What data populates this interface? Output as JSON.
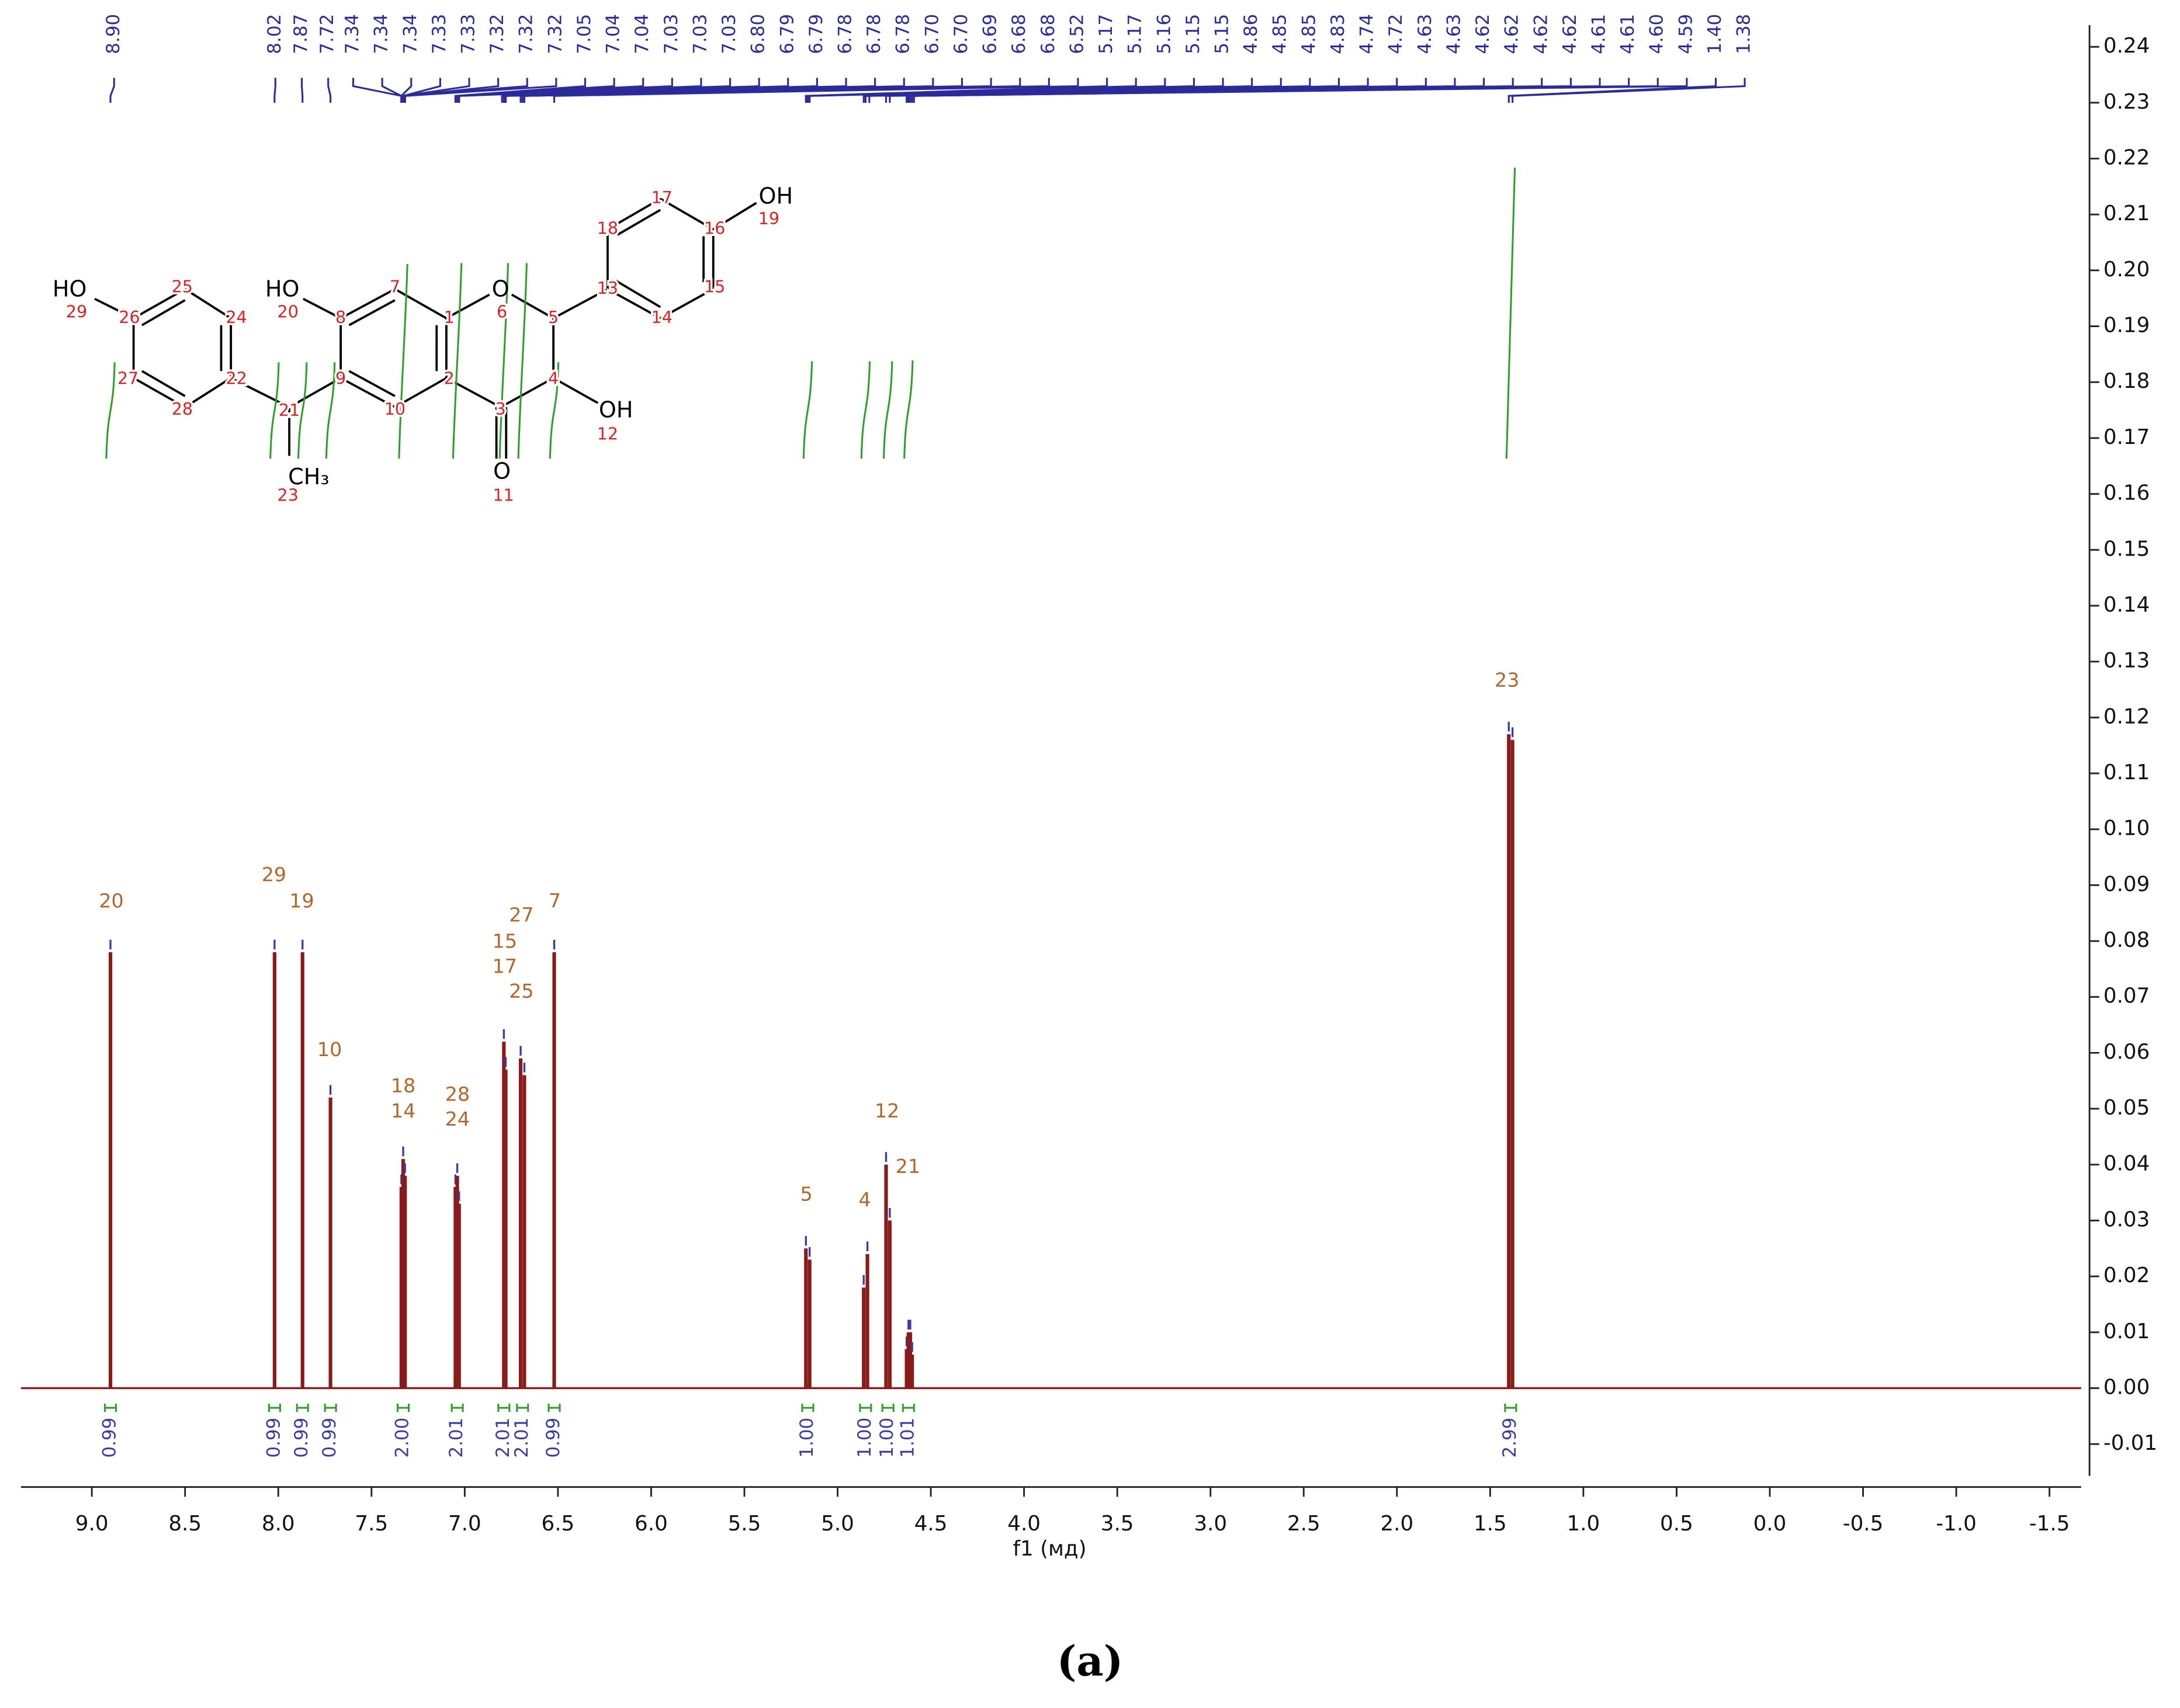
{
  "chart_data": {
    "type": "spectrum",
    "x_label": "f1 (мд)",
    "caption": "(a)",
    "color": "#8b1a1a",
    "pick_color": "#3a3ab0",
    "integral_color": "#2ea02e",
    "x": [
      8.9,
      8.02,
      7.87,
      7.72,
      7.34,
      7.33,
      7.32,
      7.05,
      7.04,
      7.03,
      6.79,
      6.78,
      6.7,
      6.68,
      6.52,
      5.17,
      5.15,
      4.86,
      4.84,
      4.74,
      4.72,
      4.63,
      4.62,
      4.61,
      4.6,
      1.4,
      1.38
    ],
    "values": [
      0.078,
      0.078,
      0.078,
      0.052,
      0.036,
      0.041,
      0.038,
      0.036,
      0.038,
      0.033,
      0.062,
      0.057,
      0.059,
      0.056,
      0.078,
      0.025,
      0.023,
      0.018,
      0.024,
      0.04,
      0.03,
      0.007,
      0.01,
      0.01,
      0.006,
      0.117,
      0.116
    ],
    "xlim": [
      9.38,
      -1.67
    ],
    "ylim": [
      -0.0157,
      0.2439
    ],
    "xticks": [
      {
        "value": 9.0,
        "label": "9.0"
      },
      8.5,
      {
        "value": 8.0,
        "label": "8.0"
      },
      7.5,
      {
        "value": 7.0,
        "label": "7.0"
      },
      6.5,
      {
        "value": 6.0,
        "label": "6.0"
      },
      5.5,
      {
        "value": 5.0,
        "label": "5.0"
      },
      4.5,
      {
        "value": 4.0,
        "label": "4.0"
      },
      3.5,
      {
        "value": 3.0,
        "label": "3.0"
      },
      2.5,
      {
        "value": 2.0,
        "label": "2.0"
      },
      1.5,
      {
        "value": 1.0,
        "label": "1.0"
      },
      0.5,
      {
        "value": 0.0,
        "label": "0.0"
      },
      -0.5,
      {
        "value": -1.0,
        "label": "-1.0"
      },
      -1.5
    ],
    "yticks": [
      -0.01,
      {
        "value": 0.0,
        "label": "0.00"
      },
      0.01,
      0.02,
      0.03,
      0.04,
      0.05,
      0.06,
      0.07,
      0.08,
      0.09,
      {
        "value": 0.1,
        "label": "0.10"
      },
      0.11,
      0.12,
      0.13,
      0.14,
      0.15,
      0.16,
      0.17,
      0.18,
      0.19,
      {
        "value": 0.2,
        "label": "0.20"
      },
      0.21,
      0.22,
      0.23,
      0.24
    ],
    "peak_labels": [
      {
        "value": 8.9,
        "label": "8.90"
      },
      {
        "value": 8.02,
        "label": "8.02"
      },
      {
        "value": 7.87,
        "label": "7.87"
      },
      {
        "value": 7.72,
        "label": "7.72"
      },
      {
        "value": 7.34,
        "label": "7.34"
      },
      {
        "value": 7.34,
        "label": "7.34"
      },
      {
        "value": 7.34,
        "label": "7.34"
      },
      {
        "value": 7.33,
        "label": "7.33"
      },
      {
        "value": 7.33,
        "label": "7.33"
      },
      {
        "value": 7.32,
        "label": "7.32"
      },
      {
        "value": 7.32,
        "label": "7.32"
      },
      {
        "value": 7.32,
        "label": "7.32"
      },
      {
        "value": 7.05,
        "label": "7.05"
      },
      {
        "value": 7.04,
        "label": "7.04"
      },
      {
        "value": 7.04,
        "label": "7.04"
      },
      {
        "value": 7.03,
        "label": "7.03"
      },
      {
        "value": 7.03,
        "label": "7.03"
      },
      {
        "value": 7.03,
        "label": "7.03"
      },
      {
        "value": 6.8,
        "label": "6.80"
      },
      {
        "value": 6.79,
        "label": "6.79"
      },
      {
        "value": 6.79,
        "label": "6.79"
      },
      {
        "value": 6.78,
        "label": "6.78"
      },
      {
        "value": 6.78,
        "label": "6.78"
      },
      {
        "value": 6.78,
        "label": "6.78"
      },
      {
        "value": 6.7,
        "label": "6.70"
      },
      {
        "value": 6.7,
        "label": "6.70"
      },
      {
        "value": 6.69,
        "label": "6.69"
      },
      {
        "value": 6.68,
        "label": "6.68"
      },
      {
        "value": 6.68,
        "label": "6.68"
      },
      {
        "value": 6.52,
        "label": "6.52"
      },
      {
        "value": 5.17,
        "label": "5.17"
      },
      {
        "value": 5.17,
        "label": "5.17"
      },
      {
        "value": 5.16,
        "label": "5.16"
      },
      {
        "value": 5.15,
        "label": "5.15"
      },
      {
        "value": 5.15,
        "label": "5.15"
      },
      {
        "value": 4.86,
        "label": "4.86"
      },
      {
        "value": 4.85,
        "label": "4.85"
      },
      {
        "value": 4.85,
        "label": "4.85"
      },
      {
        "value": 4.83,
        "label": "4.83"
      },
      {
        "value": 4.74,
        "label": "4.74"
      },
      {
        "value": 4.72,
        "label": "4.72"
      },
      {
        "value": 4.63,
        "label": "4.63"
      },
      {
        "value": 4.63,
        "label": "4.63"
      },
      {
        "value": 4.62,
        "label": "4.62"
      },
      {
        "value": 4.62,
        "label": "4.62"
      },
      {
        "value": 4.62,
        "label": "4.62"
      },
      {
        "value": 4.62,
        "label": "4.62"
      },
      {
        "value": 4.61,
        "label": "4.61"
      },
      {
        "value": 4.61,
        "label": "4.61"
      },
      {
        "value": 4.6,
        "label": "4.60"
      },
      {
        "value": 4.59,
        "label": "4.59"
      },
      {
        "value": 1.4,
        "label": "1.40"
      },
      {
        "value": 1.38,
        "label": "1.38"
      }
    ],
    "annotations": [
      "20",
      "29",
      "19",
      "10",
      "18",
      "14",
      "28",
      "24",
      "27",
      "15",
      "17",
      "25",
      "7",
      "5",
      "4",
      "12",
      "21",
      "23"
    ],
    "integrals": {
      "x": [
        8.9,
        8.02,
        7.87,
        7.72,
        7.33,
        7.04,
        6.79,
        6.69,
        6.52,
        5.16,
        4.85,
        4.73,
        4.62,
        1.39
      ],
      "values": [
        0.99,
        0.99,
        0.99,
        0.99,
        2.0,
        2.01,
        2.01,
        2.01,
        0.99,
        1.0,
        1.0,
        1.0,
        1.01,
        2.99
      ],
      "value_labels": [
        "0.99",
        "0.99",
        "0.99",
        "0.99",
        "2.00",
        "2.01",
        "2.01",
        "2.01",
        "0.99",
        "1.00",
        "1.00",
        "1.00",
        "1.01",
        "2.99"
      ]
    },
    "structure_labels": [
      "HO",
      "29",
      "25",
      "24",
      "26",
      "22",
      "27",
      "28",
      "21",
      "CH₃",
      "23",
      "HO",
      "20",
      "8",
      "7",
      "9",
      "10",
      "1",
      "2",
      "O",
      "6",
      "5",
      "4",
      "3",
      "O",
      "11",
      "OH",
      "12",
      "13",
      "14",
      "15",
      "16",
      "17",
      "18",
      "OH",
      "19"
    ]
  }
}
